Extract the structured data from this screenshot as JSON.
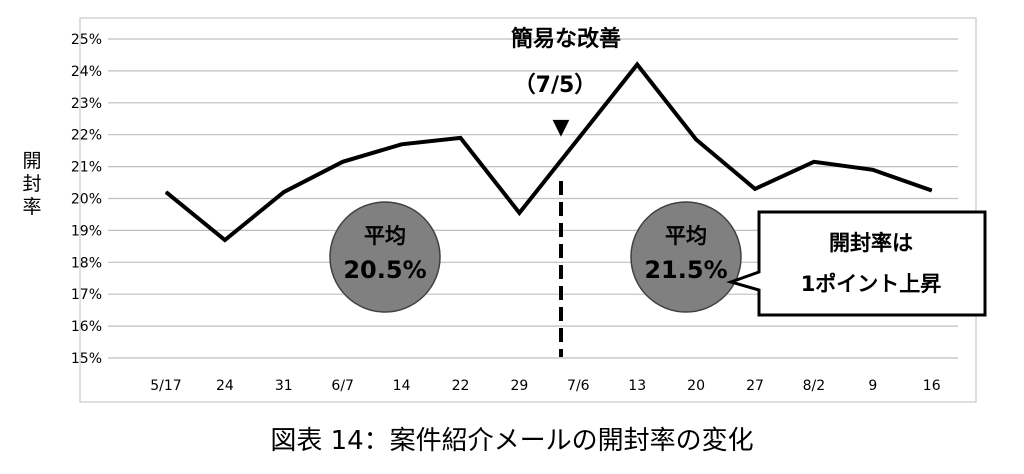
{
  "chart_data": {
    "type": "line",
    "title": "",
    "ylabel": "開封率",
    "xlabel": "",
    "categories": [
      "5/17",
      "24",
      "31",
      "6/7",
      "14",
      "22",
      "29",
      "7/6",
      "13",
      "20",
      "27",
      "8/2",
      "9",
      "16"
    ],
    "series": [
      {
        "values": [
          20.2,
          18.7,
          20.2,
          21.15,
          21.7,
          21.9,
          19.55,
          null,
          24.2,
          21.85,
          20.3,
          21.15,
          20.9,
          20.25
        ]
      }
    ],
    "ylim": [
      15,
      25
    ],
    "yticks": [
      "15%",
      "16%",
      "17%",
      "18%",
      "19%",
      "20%",
      "21%",
      "22%",
      "23%",
      "24%",
      "25%"
    ],
    "grid": true,
    "legend": "none",
    "annotations": {
      "event_title": "簡易な改善",
      "event_date": "（7/5）",
      "event_marker": "▼",
      "avg_before_label": "平均",
      "avg_before_value": "20.5%",
      "avg_after_label": "平均",
      "avg_after_value": "21.5%",
      "callout_line1": "開封率は",
      "callout_line2": "1ポイント上昇"
    },
    "colors": {
      "line": "#000000",
      "grid": "#bfbfbf",
      "circle_fill": "#808080",
      "circle_stroke": "#404040"
    }
  },
  "caption": "図表 14：案件紹介メールの開封率の変化"
}
